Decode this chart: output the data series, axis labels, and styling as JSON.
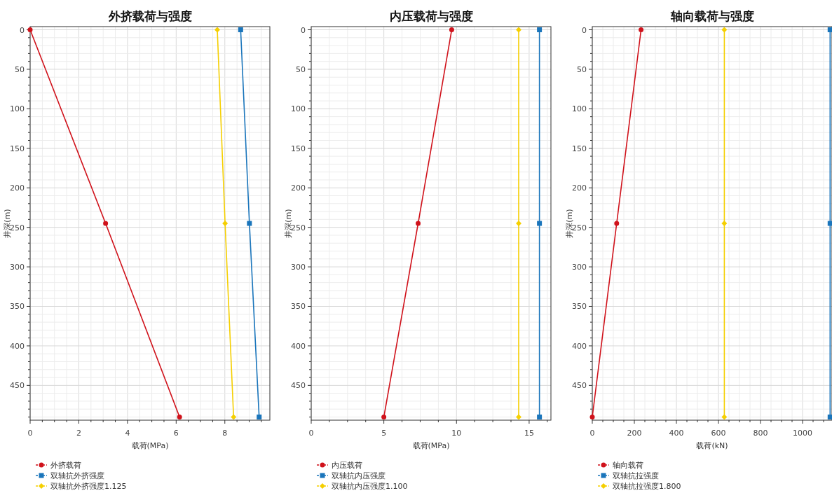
{
  "chart_data": [
    {
      "type": "line",
      "title": "外挤载荷与强度",
      "xlabel": "载荷(MPa)",
      "ylabel": "井深(m)",
      "xlim": [
        0,
        9.85
      ],
      "xticks": [
        0,
        2,
        4,
        6,
        8
      ],
      "ylim": [
        494,
        -4
      ],
      "yticks": [
        0,
        50,
        100,
        150,
        200,
        250,
        300,
        350,
        400,
        450
      ],
      "grid": true,
      "legend": "bottom",
      "line_style": "solid",
      "series": [
        {
          "name": "外挤载荷",
          "color": "#d0121b",
          "marker": "circle",
          "x": [
            0,
            3.1,
            6.14
          ],
          "values": [
            0,
            245,
            490
          ]
        },
        {
          "name": "双轴抗外挤强度",
          "color": "#1a75bb",
          "marker": "square",
          "x": [
            8.65,
            9.01,
            9.41
          ],
          "values": [
            0,
            245,
            490
          ]
        },
        {
          "name": "双轴抗外挤强度1.125",
          "color": "#f5cf00",
          "marker": "diamond",
          "x": [
            7.69,
            8.01,
            8.36
          ],
          "values": [
            0,
            245,
            490
          ]
        }
      ]
    },
    {
      "type": "line",
      "title": "内压载荷与强度",
      "xlabel": "载荷(MPa)",
      "ylabel": "井深(m)",
      "xlim": [
        0,
        16.5
      ],
      "xticks": [
        0,
        5,
        10,
        15
      ],
      "ylim": [
        494,
        -4
      ],
      "yticks": [
        0,
        50,
        100,
        150,
        200,
        250,
        300,
        350,
        400,
        450
      ],
      "grid": true,
      "legend": "bottom",
      "line_style": "solid",
      "series": [
        {
          "name": "内压载荷",
          "color": "#d0121b",
          "marker": "circle",
          "x": [
            9.67,
            7.36,
            5.0
          ],
          "values": [
            0,
            245,
            490
          ]
        },
        {
          "name": "双轴抗内压强度",
          "color": "#1a75bb",
          "marker": "square",
          "x": [
            15.71,
            15.71,
            15.71
          ],
          "values": [
            0,
            245,
            490
          ]
        },
        {
          "name": "双轴抗内压强度1.100",
          "color": "#f5cf00",
          "marker": "diamond",
          "x": [
            14.28,
            14.28,
            14.28
          ],
          "values": [
            0,
            245,
            490
          ]
        }
      ]
    },
    {
      "type": "line",
      "title": "轴向载荷与强度",
      "xlabel": "载荷(kN)",
      "ylabel": "井深(m)",
      "xlim": [
        0,
        1140
      ],
      "xticks": [
        0,
        200,
        400,
        600,
        800,
        1000
      ],
      "ylim": [
        494,
        -4
      ],
      "yticks": [
        0,
        50,
        100,
        150,
        200,
        250,
        300,
        350,
        400,
        450
      ],
      "grid": true,
      "legend": "bottom",
      "line_style": "solid",
      "series": [
        {
          "name": "轴向载荷",
          "color": "#d0121b",
          "marker": "circle",
          "x": [
            232,
            116,
            0
          ],
          "values": [
            0,
            245,
            490
          ]
        },
        {
          "name": "双轴抗拉强度",
          "color": "#1a75bb",
          "marker": "square",
          "x": [
            1131,
            1131,
            1131
          ],
          "values": [
            0,
            245,
            490
          ]
        },
        {
          "name": "双轴抗拉强度1.800",
          "color": "#f5cf00",
          "marker": "diamond",
          "x": [
            628,
            628,
            628
          ],
          "values": [
            0,
            245,
            490
          ]
        }
      ]
    }
  ]
}
